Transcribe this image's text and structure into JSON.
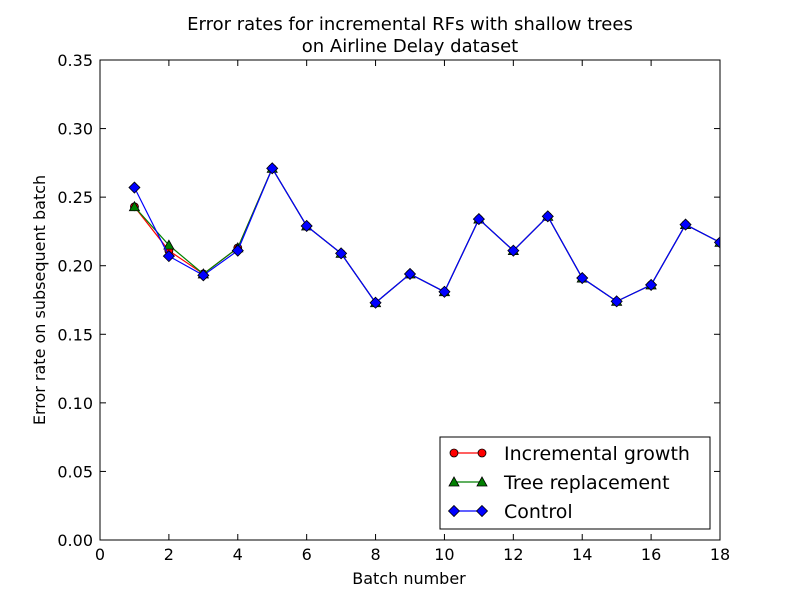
{
  "chart_data": {
    "type": "line",
    "title_line1": "Error rates for incremental RFs with shallow trees",
    "title_line2": "on Airline Delay dataset",
    "xlabel": "Batch number",
    "ylabel": "Error rate on subsequent batch",
    "xlim": [
      0,
      18
    ],
    "ylim": [
      0,
      0.35
    ],
    "xticks": [
      0,
      2,
      4,
      6,
      8,
      10,
      12,
      14,
      16,
      18
    ],
    "xtick_labels": [
      "0",
      "2",
      "4",
      "6",
      "8",
      "10",
      "12",
      "14",
      "16",
      "18"
    ],
    "yticks": [
      0.0,
      0.05,
      0.1,
      0.15,
      0.2,
      0.25,
      0.3,
      0.35
    ],
    "ytick_labels": [
      "0.00",
      "0.05",
      "0.10",
      "0.15",
      "0.20",
      "0.25",
      "0.30",
      "0.35"
    ],
    "grid": false,
    "legend_position": "lower-right",
    "x": [
      1,
      2,
      3,
      4,
      5,
      6,
      7,
      8,
      9,
      10,
      11,
      12,
      13,
      14,
      15,
      16,
      17,
      18
    ],
    "series": [
      {
        "name": "Incremental growth",
        "color": "#ff0000",
        "marker": "circle",
        "values": [
          0.243,
          0.211,
          0.194,
          0.213,
          0.271,
          0.229,
          0.209,
          0.173,
          0.194,
          0.181,
          0.234,
          0.211,
          0.236,
          0.191,
          0.174,
          0.186,
          0.23,
          0.217
        ]
      },
      {
        "name": "Tree replacement",
        "color": "#008000",
        "marker": "triangle",
        "values": [
          0.243,
          0.215,
          0.194,
          0.213,
          0.271,
          0.229,
          0.209,
          0.173,
          0.194,
          0.181,
          0.234,
          0.211,
          0.236,
          0.191,
          0.174,
          0.186,
          0.23,
          0.217
        ]
      },
      {
        "name": "Control",
        "color": "#0000ff",
        "marker": "diamond",
        "values": [
          0.257,
          0.207,
          0.193,
          0.211,
          0.271,
          0.229,
          0.209,
          0.173,
          0.194,
          0.181,
          0.234,
          0.211,
          0.236,
          0.191,
          0.174,
          0.186,
          0.23,
          0.217
        ]
      }
    ]
  }
}
